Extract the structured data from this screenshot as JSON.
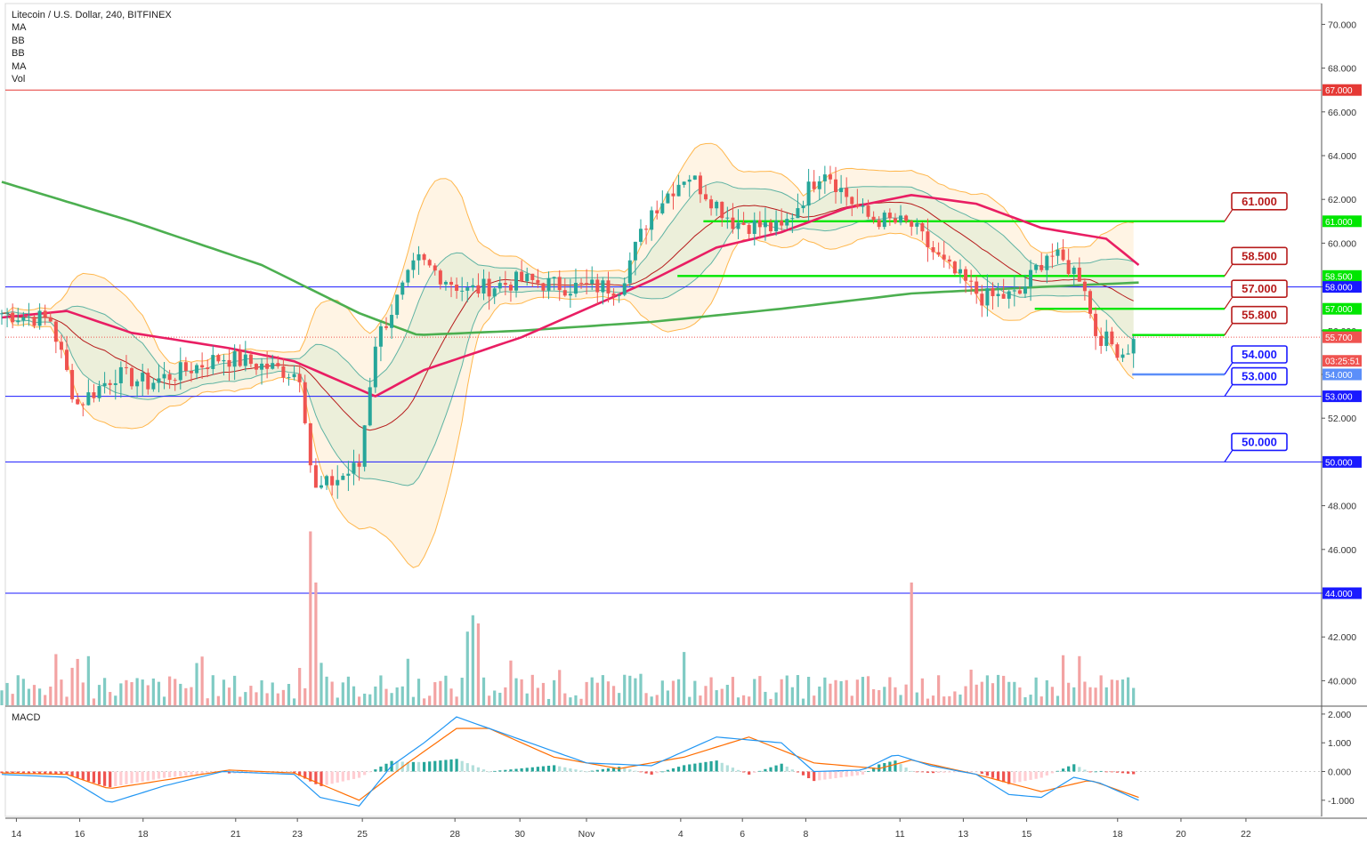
{
  "header": {
    "symbol_line": "Litecoin / U.S. Dollar, 240, BITFINEX",
    "indicators": [
      "MA",
      "BB",
      "BB",
      "MA",
      "Vol"
    ]
  },
  "macd_label": "MACD",
  "colors": {
    "bull": "#26a69a",
    "bear": "#ef5350",
    "vol_bull": "#80cbc4",
    "vol_bear": "#f3a3a3",
    "ma200": "#4caf50",
    "ma50": "#e91e63",
    "bb_outer": "#ffb74d",
    "bb_inner": "#5fb3a3",
    "bb_mid": "#b71c1c",
    "level_green": "#00e600",
    "level_blue": "#1a1aff",
    "level_red": "#e53935"
  },
  "chart_data": {
    "type": "candlestick",
    "title": "Litecoin / U.S. Dollar, 240, BITFINEX",
    "y_axis": {
      "ticks": [
        "70.000",
        "68.000",
        "66.000",
        "64.000",
        "62.000",
        "60.000",
        "58.000",
        "56.000",
        "54.000",
        "52.000",
        "50.000",
        "48.000",
        "46.000",
        "44.000",
        "42.000",
        "40.000"
      ],
      "range": [
        39,
        71
      ]
    },
    "x_axis": {
      "ticks": [
        "14",
        "16",
        "18",
        "21",
        "23",
        "25",
        "28",
        "30",
        "Nov",
        "4",
        "6",
        "8",
        "11",
        "13",
        "15",
        "18",
        "20",
        "22"
      ]
    },
    "price_labels": [
      {
        "text": "67.000",
        "value": 67.0,
        "color": "#e53935"
      },
      {
        "text": "61.000",
        "value": 61.0,
        "color": "#00e600"
      },
      {
        "text": "58.500",
        "value": 58.5,
        "color": "#00e600"
      },
      {
        "text": "58.000",
        "value": 58.0,
        "color": "#1a1aff"
      },
      {
        "text": "57.000",
        "value": 57.0,
        "color": "#00e600"
      },
      {
        "text": "55.800",
        "value": 55.8,
        "color": "#00e600"
      },
      {
        "text": "55.700",
        "value": 55.7,
        "color": "#ef5350"
      },
      {
        "text": "03:25:51",
        "value": 54.62,
        "color": "#ef5350"
      },
      {
        "text": "54.000",
        "value": 54.0,
        "color": "#5b8ff9"
      },
      {
        "text": "53.000",
        "value": 53.0,
        "color": "#1a1aff"
      },
      {
        "text": "50.000",
        "value": 50.0,
        "color": "#1a1aff"
      },
      {
        "text": "44.000",
        "value": 44.0,
        "color": "#1a1aff"
      }
    ],
    "callouts": [
      {
        "text": "61.000",
        "value": 61.0,
        "style": "red"
      },
      {
        "text": "58.500",
        "value": 58.5,
        "style": "red"
      },
      {
        "text": "57.000",
        "value": 57.0,
        "style": "red"
      },
      {
        "text": "55.800",
        "value": 55.8,
        "style": "red"
      },
      {
        "text": "54.000",
        "value": 54.0,
        "style": "blue"
      },
      {
        "text": "53.000",
        "value": 53.0,
        "style": "blue"
      },
      {
        "text": "50.000",
        "value": 50.0,
        "style": "blue"
      }
    ],
    "horizontal_levels": [
      {
        "value": 67.0,
        "color": "#e53935",
        "full": true
      },
      {
        "value": 58.0,
        "color": "#1a1aff",
        "full": true
      },
      {
        "value": 53.0,
        "color": "#1a1aff",
        "full": true
      },
      {
        "value": 50.0,
        "color": "#1a1aff",
        "full": true
      },
      {
        "value": 44.0,
        "color": "#1a1aff",
        "full": true
      },
      {
        "value": 61.0,
        "color": "#00e600",
        "from_x": "Nov 5"
      },
      {
        "value": 58.5,
        "color": "#00e600",
        "from_x": "Nov 4"
      },
      {
        "value": 57.0,
        "color": "#00e600",
        "from_x": "Nov 15"
      },
      {
        "value": 55.8,
        "color": "#00e600",
        "from_x": "Nov 18"
      },
      {
        "value": 54.0,
        "color": "#5b8ff9",
        "from_x": "Nov 18"
      }
    ],
    "price_keypoints": [
      {
        "day": 0,
        "price": 56.8
      },
      {
        "day": 1.5,
        "price": 56.5
      },
      {
        "day": 2.3,
        "price": 52.6
      },
      {
        "day": 3.5,
        "price": 54.0
      },
      {
        "day": 4.5,
        "price": 53.6
      },
      {
        "day": 6.8,
        "price": 54.8
      },
      {
        "day": 9.2,
        "price": 54.0
      },
      {
        "day": 9.6,
        "price": 48.6
      },
      {
        "day": 11.0,
        "price": 49.8
      },
      {
        "day": 11.5,
        "price": 55.5
      },
      {
        "day": 12.8,
        "price": 59.2
      },
      {
        "day": 14.3,
        "price": 57.8
      },
      {
        "day": 16.0,
        "price": 58.3
      },
      {
        "day": 17.5,
        "price": 58.0
      },
      {
        "day": 19.0,
        "price": 58.0
      },
      {
        "day": 20.0,
        "price": 61.5
      },
      {
        "day": 21.1,
        "price": 63.2
      },
      {
        "day": 22.5,
        "price": 61.0
      },
      {
        "day": 24.0,
        "price": 60.6
      },
      {
        "day": 25.3,
        "price": 63.5
      },
      {
        "day": 25.8,
        "price": 62.5
      },
      {
        "day": 26.6,
        "price": 61.2
      },
      {
        "day": 28.0,
        "price": 60.8
      },
      {
        "day": 29.0,
        "price": 59.0
      },
      {
        "day": 30.2,
        "price": 57.5
      },
      {
        "day": 31.3,
        "price": 57.6
      },
      {
        "day": 32.2,
        "price": 59.6
      },
      {
        "day": 33.3,
        "price": 58.4
      },
      {
        "day": 33.6,
        "price": 56.0
      },
      {
        "day": 34.5,
        "price": 55.0
      },
      {
        "day": 35.0,
        "price": 55.7
      }
    ],
    "moving_averages": [
      {
        "name": "MA",
        "color": "#4caf50",
        "points": [
          [
            0,
            62.8
          ],
          [
            4,
            61.0
          ],
          [
            8,
            59.0
          ],
          [
            11,
            56.8
          ],
          [
            12.8,
            55.8
          ],
          [
            16,
            56.0
          ],
          [
            20,
            56.4
          ],
          [
            24,
            57.0
          ],
          [
            28,
            57.7
          ],
          [
            32,
            58.0
          ],
          [
            35,
            58.2
          ]
        ]
      },
      {
        "name": "MA",
        "color": "#e91e63",
        "points": [
          [
            0,
            56.6
          ],
          [
            2,
            56.9
          ],
          [
            4,
            55.9
          ],
          [
            7,
            55.2
          ],
          [
            9,
            54.6
          ],
          [
            11.5,
            53.0
          ],
          [
            13,
            54.2
          ],
          [
            16,
            55.7
          ],
          [
            18,
            57.0
          ],
          [
            20,
            58.3
          ],
          [
            22,
            59.8
          ],
          [
            24,
            60.5
          ],
          [
            26,
            61.6
          ],
          [
            28,
            62.2
          ],
          [
            30,
            61.8
          ],
          [
            32,
            60.7
          ],
          [
            34,
            60.2
          ],
          [
            35,
            59.0
          ]
        ]
      }
    ],
    "bollinger": {
      "period": 20,
      "stddev": 2
    },
    "volume_note": "volume histogram in bottom of main pane",
    "macd": {
      "label": "MACD",
      "y_ticks": [
        "2.000",
        "1.000",
        "0.000",
        "-1.000"
      ],
      "y_range": [
        -1.6,
        2.2
      ],
      "line": [
        [
          0,
          -0.1
        ],
        [
          2,
          -0.2
        ],
        [
          3.3,
          -1.1
        ],
        [
          5,
          -0.5
        ],
        [
          6.8,
          0.0
        ],
        [
          9,
          -0.1
        ],
        [
          9.8,
          -0.9
        ],
        [
          11,
          -1.2
        ],
        [
          12,
          0.2
        ],
        [
          13,
          1.0
        ],
        [
          14,
          1.9
        ],
        [
          16,
          1.1
        ],
        [
          18,
          0.3
        ],
        [
          20,
          0.2
        ],
        [
          22,
          1.2
        ],
        [
          24,
          1.0
        ],
        [
          25,
          0.0
        ],
        [
          26.5,
          0.05
        ],
        [
          27.5,
          0.6
        ],
        [
          28.6,
          0.2
        ],
        [
          30,
          -0.1
        ],
        [
          31,
          -0.8
        ],
        [
          32,
          -0.9
        ],
        [
          33,
          -0.2
        ],
        [
          33.8,
          -0.4
        ],
        [
          35,
          -1.0
        ]
      ],
      "signal": [
        [
          0,
          -0.05
        ],
        [
          2,
          -0.1
        ],
        [
          3.3,
          -0.6
        ],
        [
          5,
          -0.3
        ],
        [
          7,
          0.05
        ],
        [
          9,
          -0.05
        ],
        [
          11,
          -1.0
        ],
        [
          12.5,
          0.3
        ],
        [
          14,
          1.5
        ],
        [
          15,
          1.5
        ],
        [
          17,
          0.5
        ],
        [
          19,
          0.1
        ],
        [
          21,
          0.5
        ],
        [
          23,
          1.2
        ],
        [
          25,
          0.3
        ],
        [
          27,
          0.1
        ],
        [
          28,
          0.4
        ],
        [
          30,
          -0.1
        ],
        [
          32,
          -0.7
        ],
        [
          33.5,
          -0.3
        ],
        [
          35,
          -0.9
        ]
      ]
    }
  }
}
